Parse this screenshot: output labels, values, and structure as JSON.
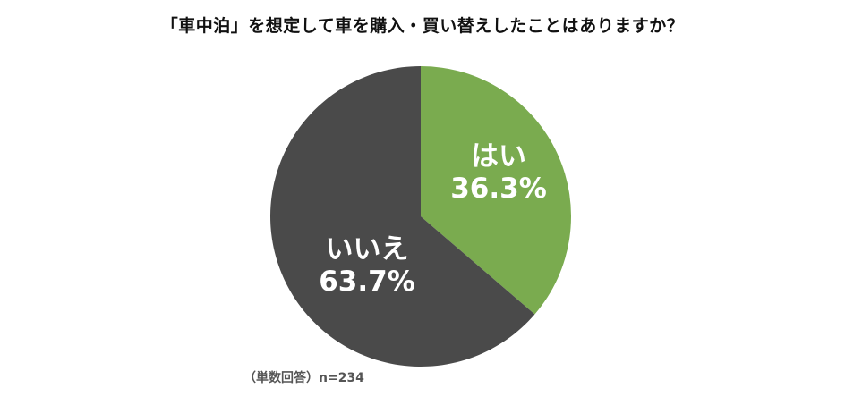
{
  "chart_data": {
    "type": "pie",
    "title": "「車中泊」を想定して車を購入・買い替えしたことはありますか？",
    "slices": [
      {
        "label": "はい",
        "value": 36.3,
        "value_text": "36.3%",
        "color": "#7aab4f"
      },
      {
        "label": "いいえ",
        "value": 63.7,
        "value_text": "63.7%",
        "color": "#4a4a4a"
      }
    ],
    "start_angle_deg": 0,
    "direction": "clockwise",
    "legend": "none",
    "note": "（単数回答）n=234"
  }
}
